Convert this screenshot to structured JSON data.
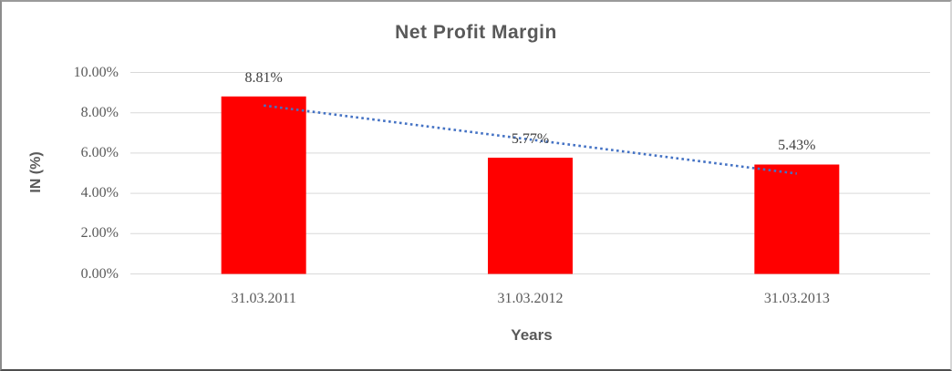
{
  "chart_data": {
    "type": "bar",
    "title": "Net Profit Margin",
    "xlabel": "Years",
    "ylabel": "IN (%)",
    "categories": [
      "31.03.2011",
      "31.03.2012",
      "31.03.2013"
    ],
    "values": [
      8.81,
      5.77,
      5.43
    ],
    "value_labels": [
      "8.81%",
      "5.77%",
      "5.43%"
    ],
    "ylim": [
      0,
      10
    ],
    "ytick_values": [
      0,
      2,
      4,
      6,
      8,
      10
    ],
    "ytick_labels": [
      "0.00%",
      "2.00%",
      "4.00%",
      "6.00%",
      "8.00%",
      "10.00%"
    ],
    "grid": "horizontal",
    "legend": "none",
    "bar_color": "#ff0000",
    "trendline": {
      "style": "dotted",
      "color": "#4472c4",
      "fit": "linear"
    },
    "gridline_color": "#d9d9d9",
    "title_color": "#595959",
    "tick_color": "#595959",
    "data_label_color": "#404040"
  }
}
